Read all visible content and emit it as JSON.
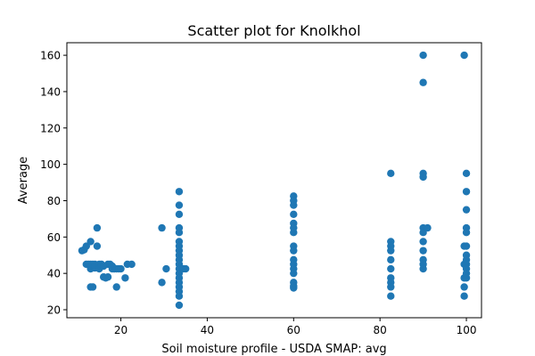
{
  "chart_data": {
    "type": "scatter",
    "title": "Scatter plot for Knolkhol",
    "xlabel": "Soil moisture profile - USDA SMAP: avg",
    "ylabel": "Average",
    "xlim": [
      7.5,
      103.5
    ],
    "ylim": [
      15.6,
      166.9
    ],
    "xticks": [
      20,
      40,
      60,
      80,
      100
    ],
    "yticks": [
      20,
      40,
      60,
      80,
      100,
      120,
      140,
      160
    ],
    "grid": false,
    "legend": false,
    "color": "#1f77b4",
    "series": [
      {
        "points": [
          [
            11,
            52.5
          ],
          [
            11.5,
            53
          ],
          [
            12,
            55
          ],
          [
            12,
            45
          ],
          [
            12.5,
            45
          ],
          [
            13,
            57.5
          ],
          [
            13,
            44
          ],
          [
            13,
            43
          ],
          [
            13,
            42.5
          ],
          [
            13,
            32.5
          ],
          [
            13.5,
            32.5
          ],
          [
            13,
            45
          ],
          [
            13.5,
            45
          ],
          [
            14,
            45
          ],
          [
            14,
            43
          ],
          [
            14,
            44
          ],
          [
            14.5,
            65
          ],
          [
            14.5,
            55
          ],
          [
            15,
            45
          ],
          [
            15,
            43
          ],
          [
            15,
            42.5
          ],
          [
            15.5,
            45
          ],
          [
            16,
            44
          ],
          [
            16,
            38
          ],
          [
            16.5,
            37.5
          ],
          [
            17,
            45
          ],
          [
            17,
            38
          ],
          [
            17.5,
            45
          ],
          [
            18,
            42.5
          ],
          [
            18,
            44
          ],
          [
            18.5,
            42.5
          ],
          [
            19,
            32.5
          ],
          [
            19,
            42.5
          ],
          [
            19.5,
            42.5
          ],
          [
            20,
            42.5
          ],
          [
            21,
            37.5
          ],
          [
            21.5,
            45
          ],
          [
            22.5,
            45
          ],
          [
            29.5,
            65
          ],
          [
            29.5,
            35
          ],
          [
            30.5,
            42.5
          ],
          [
            33.5,
            85
          ],
          [
            33.5,
            77.5
          ],
          [
            33.5,
            72.5
          ],
          [
            33.5,
            65
          ],
          [
            33.5,
            62.5
          ],
          [
            33.5,
            57.5
          ],
          [
            33.5,
            55
          ],
          [
            33.5,
            52.5
          ],
          [
            33.5,
            50
          ],
          [
            33.5,
            47.5
          ],
          [
            33.5,
            45
          ],
          [
            33.5,
            42.5
          ],
          [
            33.5,
            40
          ],
          [
            33.5,
            37.5
          ],
          [
            33.5,
            35
          ],
          [
            33.5,
            32.5
          ],
          [
            33.5,
            30
          ],
          [
            33.5,
            27.5
          ],
          [
            33.5,
            22.5
          ],
          [
            34.5,
            42.5
          ],
          [
            35,
            42.5
          ],
          [
            60,
            82.5
          ],
          [
            60,
            80
          ],
          [
            60,
            77.5
          ],
          [
            60,
            72.5
          ],
          [
            60,
            67.5
          ],
          [
            60,
            65
          ],
          [
            60,
            62.5
          ],
          [
            60,
            55
          ],
          [
            60,
            52.5
          ],
          [
            60,
            47.5
          ],
          [
            60,
            45
          ],
          [
            60,
            42.5
          ],
          [
            60,
            40
          ],
          [
            60,
            35
          ],
          [
            60,
            33
          ],
          [
            60,
            32
          ],
          [
            82.5,
            95
          ],
          [
            82.5,
            57.5
          ],
          [
            82.5,
            55
          ],
          [
            82.5,
            52.5
          ],
          [
            82.5,
            47.5
          ],
          [
            82.5,
            42.5
          ],
          [
            82.5,
            37.5
          ],
          [
            82.5,
            35
          ],
          [
            82.5,
            32.5
          ],
          [
            82.5,
            27.5
          ],
          [
            90,
            160
          ],
          [
            90,
            145
          ],
          [
            90,
            95
          ],
          [
            90,
            93
          ],
          [
            90,
            65
          ],
          [
            90,
            62.5
          ],
          [
            90,
            57.5
          ],
          [
            90,
            52.5
          ],
          [
            90,
            47.5
          ],
          [
            90,
            45
          ],
          [
            90,
            42.5
          ],
          [
            91,
            65
          ],
          [
            99.5,
            160
          ],
          [
            99.5,
            55
          ],
          [
            99.5,
            45
          ],
          [
            99.5,
            37.5
          ],
          [
            99.5,
            32.5
          ],
          [
            99.5,
            27.5
          ],
          [
            100,
            95
          ],
          [
            100,
            85
          ],
          [
            100,
            75
          ],
          [
            100,
            65
          ],
          [
            100,
            62.5
          ],
          [
            100,
            55
          ],
          [
            100,
            50
          ],
          [
            100,
            47.5
          ],
          [
            100,
            45
          ],
          [
            100,
            42.5
          ],
          [
            100,
            40
          ],
          [
            100,
            37.5
          ]
        ]
      }
    ]
  }
}
